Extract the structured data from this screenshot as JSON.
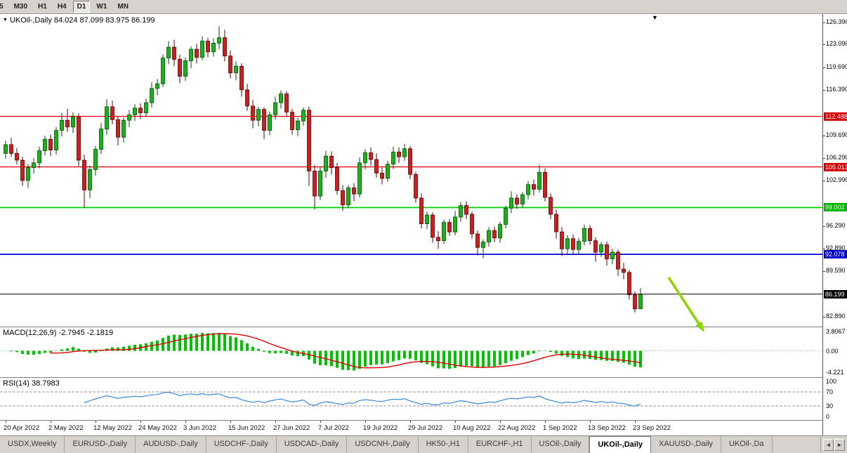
{
  "toolbar": {
    "timeframes": [
      {
        "label": "5",
        "active": false
      },
      {
        "label": "M30",
        "active": false
      },
      {
        "label": "H1",
        "active": false
      },
      {
        "label": "H4",
        "active": false
      },
      {
        "label": "D1",
        "active": true
      },
      {
        "label": "W1",
        "active": false
      },
      {
        "label": "MN",
        "active": false
      }
    ]
  },
  "chart": {
    "collapse_marker": "▼",
    "shift_marker": "▼",
    "symbol_label": "UKOil-,Daily  84.024 87.099 83.975 86.199",
    "ohlc_display": {
      "open": "84.024",
      "high": "87.099",
      "low": "83.975",
      "close": "86.199"
    },
    "price_axis": {
      "ticks": [
        {
          "label": "126.390",
          "value": 126.39
        },
        {
          "label": "123.090",
          "value": 123.09
        },
        {
          "label": "119.690",
          "value": 119.69
        },
        {
          "label": "116.390",
          "value": 116.39
        },
        {
          "label": "109.690",
          "value": 109.69
        },
        {
          "label": "106.290",
          "value": 106.29
        },
        {
          "label": "102.990",
          "value": 102.99
        },
        {
          "label": "96.290",
          "value": 96.29
        },
        {
          "label": "92.890",
          "value": 92.89
        },
        {
          "label": "89.590",
          "value": 89.59
        },
        {
          "label": "82.890",
          "value": 82.89
        }
      ],
      "badges": [
        {
          "label": "112.488",
          "value": 112.488,
          "color": "#d40000"
        },
        {
          "label": "105.013",
          "value": 105.013,
          "color": "#d40000"
        },
        {
          "label": "99.002",
          "value": 99.002,
          "color": "#00b400"
        },
        {
          "label": "92.078",
          "value": 92.078,
          "color": "#0000cd"
        },
        {
          "label": "86.199",
          "value": 86.199,
          "color": "#000000"
        }
      ]
    },
    "levels": [
      {
        "value": 112.488,
        "color": "#e00000",
        "width": 1.2
      },
      {
        "value": 105.013,
        "color": "#e00000",
        "width": 1.2
      },
      {
        "value": 99.002,
        "color": "#00d000",
        "width": 1.8
      },
      {
        "value": 92.078,
        "color": "#0000e0",
        "width": 1.8
      }
    ],
    "current_price": {
      "value": 86.199,
      "color": "#000000"
    },
    "date_axis": [
      {
        "label": "20 Apr 2022",
        "index": 0
      },
      {
        "label": "2 May 2022",
        "index": 8
      },
      {
        "label": "12 May 2022",
        "index": 16
      },
      {
        "label": "24 May 2022",
        "index": 24
      },
      {
        "label": "3 Jun 2022",
        "index": 32
      },
      {
        "label": "15 Jun 2022",
        "index": 40
      },
      {
        "label": "27 Jun 2022",
        "index": 48
      },
      {
        "label": "7 Jul 2022",
        "index": 56
      },
      {
        "label": "19 Jul 2022",
        "index": 64
      },
      {
        "label": "29 Jul 2022",
        "index": 72
      },
      {
        "label": "10 Aug 2022",
        "index": 80
      },
      {
        "label": "22 Aug 2022",
        "index": 88
      },
      {
        "label": "1 Sep 2022",
        "index": 96
      },
      {
        "label": "13 Sep 2022",
        "index": 104
      },
      {
        "label": "23 Sep 2022",
        "index": 112
      }
    ],
    "arrow": {
      "color": "#8cd600"
    }
  },
  "chart_data": {
    "type": "candlestick",
    "symbol": "UKOil-",
    "timeframe": "Daily",
    "ylim": [
      81.4,
      127.6
    ],
    "up_color": "#19b219",
    "up_stroke": "#004d00",
    "down_color": "#cc2020",
    "down_stroke": "#5a0000",
    "ohlc": [
      [
        107.0,
        108.9,
        106.2,
        108.3
      ],
      [
        108.3,
        109.3,
        106.5,
        107.0
      ],
      [
        107.0,
        107.8,
        105.4,
        106.0
      ],
      [
        106.0,
        106.5,
        102.2,
        103.0
      ],
      [
        103.0,
        105.4,
        101.9,
        104.9
      ],
      [
        104.9,
        106.3,
        104.0,
        105.6
      ],
      [
        105.6,
        108.0,
        104.8,
        107.4
      ],
      [
        107.4,
        109.6,
        106.7,
        109.1
      ],
      [
        109.1,
        109.8,
        106.6,
        107.5
      ],
      [
        107.5,
        110.9,
        106.8,
        110.4
      ],
      [
        110.4,
        113.0,
        109.5,
        111.9
      ],
      [
        111.9,
        113.6,
        110.2,
        110.9
      ],
      [
        110.9,
        113.1,
        110.0,
        112.4
      ],
      [
        112.4,
        112.9,
        105.1,
        106.0
      ],
      [
        106.0,
        106.8,
        98.9,
        101.6
      ],
      [
        101.6,
        105.2,
        100.4,
        104.6
      ],
      [
        104.6,
        108.1,
        103.7,
        107.6
      ],
      [
        107.6,
        111.5,
        106.9,
        110.6
      ],
      [
        110.6,
        115.0,
        109.8,
        113.9
      ],
      [
        113.9,
        114.8,
        111.3,
        112.0
      ],
      [
        112.0,
        112.5,
        108.2,
        109.4
      ],
      [
        109.4,
        112.3,
        108.6,
        111.9
      ],
      [
        111.9,
        113.4,
        110.9,
        112.7
      ],
      [
        112.7,
        114.3,
        111.8,
        113.7
      ],
      [
        113.7,
        114.4,
        112.1,
        113.0
      ],
      [
        113.0,
        115.1,
        112.4,
        114.5
      ],
      [
        114.5,
        117.5,
        113.8,
        116.6
      ],
      [
        116.6,
        118.0,
        115.6,
        117.3
      ],
      [
        117.3,
        121.6,
        116.8,
        121.1
      ],
      [
        121.1,
        123.6,
        120.2,
        122.7
      ],
      [
        122.7,
        123.8,
        119.9,
        120.9
      ],
      [
        120.9,
        121.6,
        117.4,
        118.4
      ],
      [
        118.4,
        121.2,
        117.7,
        120.7
      ],
      [
        120.7,
        122.8,
        119.6,
        122.4
      ],
      [
        122.4,
        123.2,
        120.3,
        121.2
      ],
      [
        121.2,
        124.3,
        120.8,
        123.6
      ],
      [
        123.6,
        124.1,
        121.2,
        122.0
      ],
      [
        122.0,
        124.0,
        121.3,
        123.3
      ],
      [
        123.3,
        125.8,
        122.4,
        124.1
      ],
      [
        124.1,
        125.3,
        120.6,
        121.4
      ],
      [
        121.4,
        122.2,
        118.1,
        118.9
      ],
      [
        118.9,
        120.6,
        117.8,
        119.9
      ],
      [
        119.9,
        120.3,
        115.4,
        116.4
      ],
      [
        116.4,
        117.3,
        113.3,
        114.0
      ],
      [
        114.0,
        114.9,
        110.7,
        111.9
      ],
      [
        111.9,
        113.9,
        111.0,
        113.5
      ],
      [
        113.5,
        113.8,
        109.1,
        110.4
      ],
      [
        110.4,
        113.2,
        109.7,
        112.7
      ],
      [
        112.7,
        115.4,
        112.0,
        114.5
      ],
      [
        114.5,
        116.3,
        113.6,
        115.8
      ],
      [
        115.8,
        116.2,
        112.4,
        113.1
      ],
      [
        113.1,
        113.6,
        109.8,
        110.5
      ],
      [
        110.5,
        112.3,
        109.5,
        111.8
      ],
      [
        111.8,
        113.8,
        111.1,
        113.4
      ],
      [
        113.4,
        113.9,
        102.2,
        104.4
      ],
      [
        104.4,
        105.3,
        98.7,
        100.7
      ],
      [
        100.7,
        105.0,
        100.1,
        104.4
      ],
      [
        104.4,
        107.4,
        103.4,
        106.6
      ],
      [
        106.6,
        107.3,
        103.9,
        104.9
      ],
      [
        104.9,
        105.6,
        100.9,
        101.5
      ],
      [
        101.5,
        102.3,
        98.5,
        99.4
      ],
      [
        99.4,
        102.3,
        98.9,
        101.9
      ],
      [
        101.9,
        102.6,
        99.9,
        101.0
      ],
      [
        101.0,
        106.4,
        100.5,
        105.6
      ],
      [
        105.6,
        107.6,
        104.6,
        107.1
      ],
      [
        107.1,
        107.9,
        105.2,
        106.1
      ],
      [
        106.1,
        107.0,
        103.4,
        104.1
      ],
      [
        104.1,
        104.9,
        102.4,
        103.3
      ],
      [
        103.3,
        105.9,
        102.8,
        105.4
      ],
      [
        105.4,
        108.0,
        104.7,
        107.2
      ],
      [
        107.2,
        107.9,
        105.6,
        106.5
      ],
      [
        106.5,
        108.4,
        105.9,
        107.7
      ],
      [
        107.7,
        108.1,
        103.2,
        103.9
      ],
      [
        103.9,
        104.3,
        99.7,
        100.4
      ],
      [
        100.4,
        101.1,
        95.9,
        96.6
      ],
      [
        96.6,
        98.4,
        95.8,
        97.9
      ],
      [
        97.9,
        98.3,
        93.8,
        94.6
      ],
      [
        94.6,
        95.5,
        92.9,
        94.1
      ],
      [
        94.1,
        97.2,
        93.6,
        96.8
      ],
      [
        96.8,
        97.3,
        94.8,
        95.4
      ],
      [
        95.4,
        98.5,
        94.9,
        97.6
      ],
      [
        97.6,
        99.8,
        96.9,
        99.3
      ],
      [
        99.3,
        99.9,
        97.3,
        98.0
      ],
      [
        98.0,
        98.4,
        94.4,
        95.1
      ],
      [
        95.1,
        95.6,
        91.9,
        93.1
      ],
      [
        93.1,
        94.3,
        91.5,
        93.9
      ],
      [
        93.9,
        96.1,
        93.2,
        95.6
      ],
      [
        95.6,
        96.2,
        93.9,
        94.5
      ],
      [
        94.5,
        96.9,
        93.8,
        96.5
      ],
      [
        96.5,
        99.3,
        95.9,
        98.9
      ],
      [
        98.9,
        101.4,
        98.2,
        100.4
      ],
      [
        100.4,
        101.0,
        98.8,
        99.5
      ],
      [
        99.5,
        101.3,
        98.9,
        100.9
      ],
      [
        100.9,
        102.9,
        100.2,
        102.4
      ],
      [
        102.4,
        103.1,
        100.8,
        101.7
      ],
      [
        101.7,
        105.3,
        101.2,
        104.2
      ],
      [
        104.2,
        104.8,
        99.9,
        100.5
      ],
      [
        100.5,
        101.1,
        97.3,
        98.0
      ],
      [
        98.0,
        98.7,
        94.4,
        95.4
      ],
      [
        95.4,
        96.1,
        91.8,
        92.9
      ],
      [
        92.9,
        94.9,
        92.2,
        94.4
      ],
      [
        94.4,
        95.0,
        92.1,
        92.8
      ],
      [
        92.8,
        94.5,
        92.0,
        94.0
      ],
      [
        94.0,
        96.5,
        93.4,
        95.9
      ],
      [
        95.9,
        96.4,
        93.5,
        94.1
      ],
      [
        94.1,
        94.6,
        91.0,
        92.4
      ],
      [
        92.4,
        93.9,
        91.7,
        93.5
      ],
      [
        93.5,
        94.0,
        90.4,
        91.4
      ],
      [
        91.4,
        92.9,
        90.6,
        92.4
      ],
      [
        92.4,
        92.8,
        88.9,
        89.9
      ],
      [
        89.9,
        90.8,
        88.4,
        89.4
      ],
      [
        89.4,
        89.8,
        85.4,
        86.1
      ],
      [
        86.1,
        86.6,
        83.5,
        84.0
      ],
      [
        84.024,
        87.099,
        83.975,
        86.199
      ]
    ]
  },
  "macd": {
    "label": "MACD(12,26,9) -2.7945 -2.1819",
    "value": -2.7945,
    "signal": -2.1819,
    "axis_labels": [
      {
        "label": "3.8067",
        "value": 3.8067
      },
      {
        "label": "0.00",
        "value": 0
      },
      {
        "label": "-4.221",
        "value": -4.221
      }
    ],
    "range": [
      -4.221,
      3.8067
    ],
    "histogram_color": "#00c000",
    "signal_color": "#e00000"
  },
  "rsi": {
    "label": "RSI(14) 38.7983",
    "value": 38.7983,
    "axis_labels": [
      {
        "label": "100",
        "value": 100
      },
      {
        "label": "70",
        "value": 70
      },
      {
        "label": "30",
        "value": 30
      },
      {
        "label": "0",
        "value": 0
      }
    ],
    "levels": [
      70,
      30
    ],
    "line_color": "#3a87d8"
  },
  "tabs": {
    "items": [
      {
        "label": "USDX,Weekly",
        "active": false
      },
      {
        "label": "EURUSD-,Daily",
        "active": false
      },
      {
        "label": "AUDUSD-,Daily",
        "active": false
      },
      {
        "label": "USDCHF-,Daily",
        "active": false
      },
      {
        "label": "USDCAD-,Daily",
        "active": false
      },
      {
        "label": "USDCNH-,Daily",
        "active": false
      },
      {
        "label": "HK50-,H1",
        "active": false
      },
      {
        "label": "EURCHF-,H1",
        "active": false
      },
      {
        "label": "USOil-,Daily",
        "active": false
      },
      {
        "label": "UKOil-,Daily",
        "active": true
      },
      {
        "label": "XAUUSD-,Daily",
        "active": false
      },
      {
        "label": "UKOil-,Da",
        "active": false
      }
    ],
    "scroll_left": "◄",
    "scroll_right": "►"
  }
}
